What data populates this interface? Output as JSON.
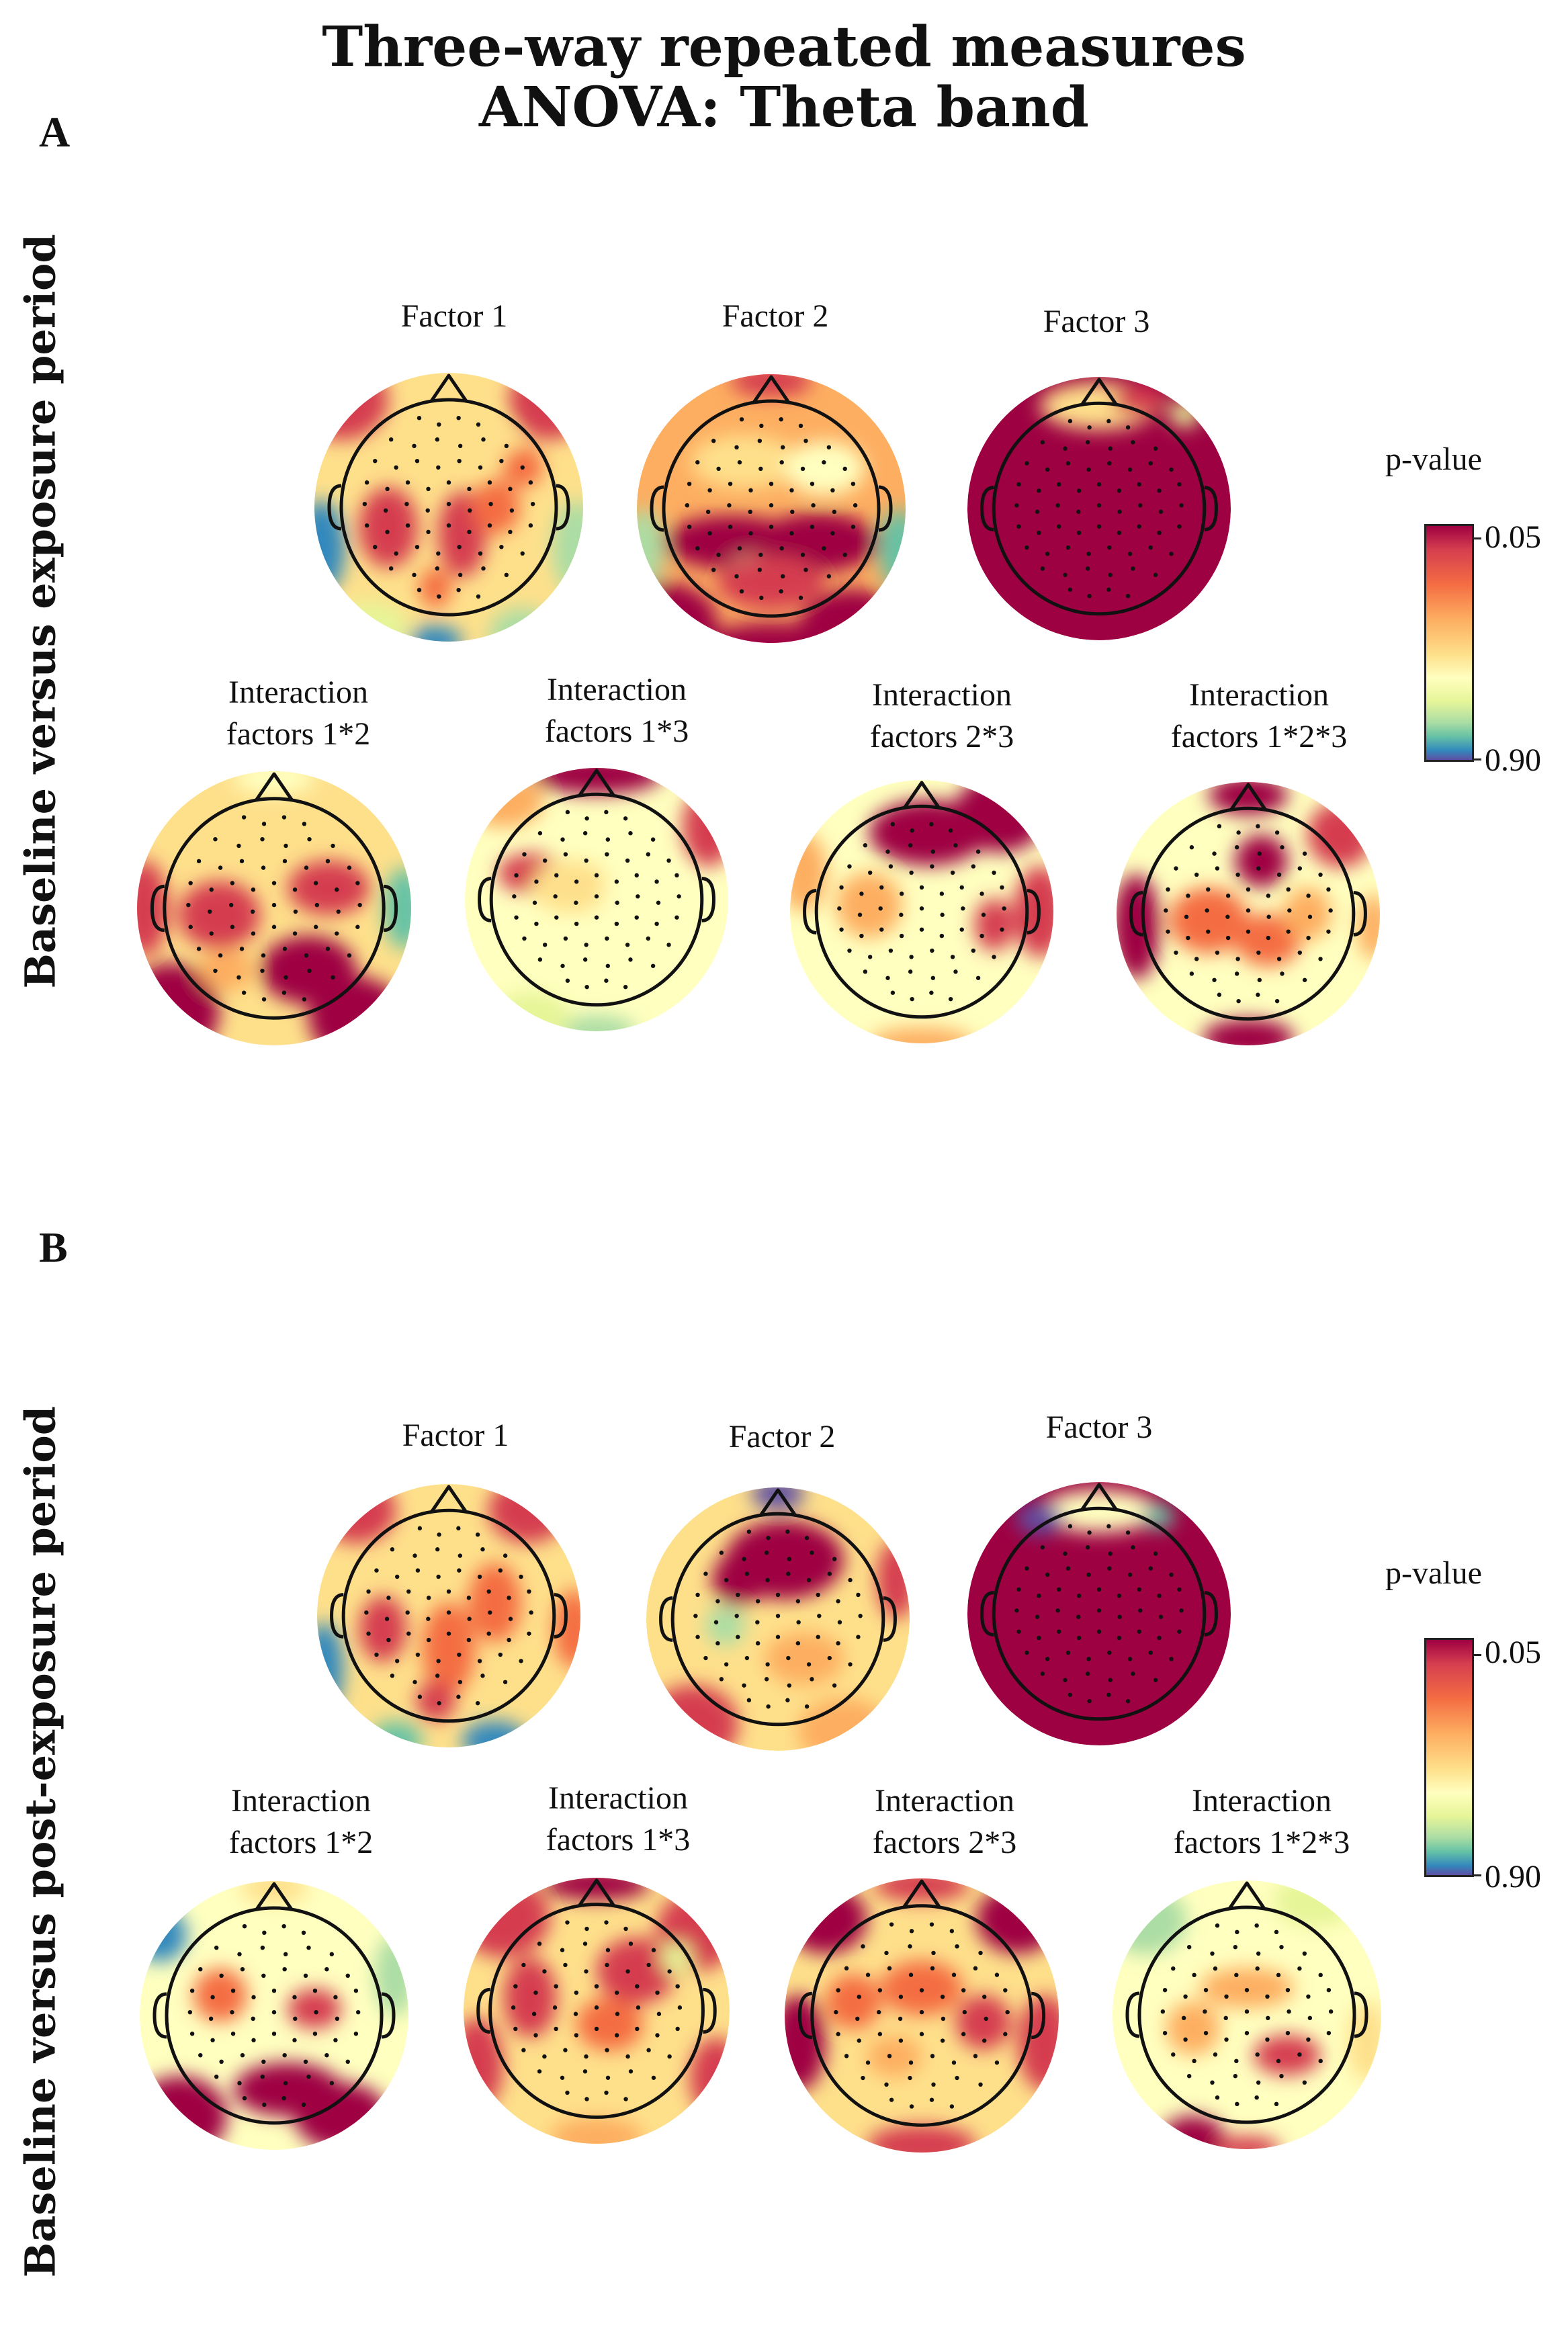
{
  "title_line1": "Three-way repeated measures",
  "title_line2": "ANOVA: Theta band",
  "colorbar": {
    "title": "p-value",
    "top_value": "0.05",
    "bottom_value": "0.90",
    "colors": [
      "#9e0142",
      "#d53e4f",
      "#f46d43",
      "#fdae61",
      "#fee08b",
      "#ffffbf",
      "#e6f598",
      "#abdda4",
      "#66c2a5",
      "#3288bd",
      "#5e4fa2"
    ]
  },
  "panels": [
    {
      "letter": "A",
      "side_label": "Baseline versus exposure period",
      "maps": [
        {
          "line1": "Factor 1",
          "line2": ""
        },
        {
          "line1": "Factor 2",
          "line2": ""
        },
        {
          "line1": "Factor 3",
          "line2": ""
        },
        {
          "line1": "Interaction",
          "line2": "factors 1*2"
        },
        {
          "line1": "Interaction",
          "line2": "factors 1*3"
        },
        {
          "line1": "Interaction",
          "line2": "factors 2*3"
        },
        {
          "line1": "Interaction",
          "line2": "factors 1*2*3"
        }
      ]
    },
    {
      "letter": "B",
      "side_label": "Baseline versus post-exposure period",
      "maps": [
        {
          "line1": "Factor 1",
          "line2": ""
        },
        {
          "line1": "Factor 2",
          "line2": ""
        },
        {
          "line1": "Factor 3",
          "line2": ""
        },
        {
          "line1": "Interaction",
          "line2": "factors 1*2"
        },
        {
          "line1": "Interaction",
          "line2": "factors 1*3"
        },
        {
          "line1": "Interaction",
          "line2": "factors 2*3"
        },
        {
          "line1": "Interaction",
          "line2": "factors 1*2*3"
        }
      ]
    }
  ]
}
